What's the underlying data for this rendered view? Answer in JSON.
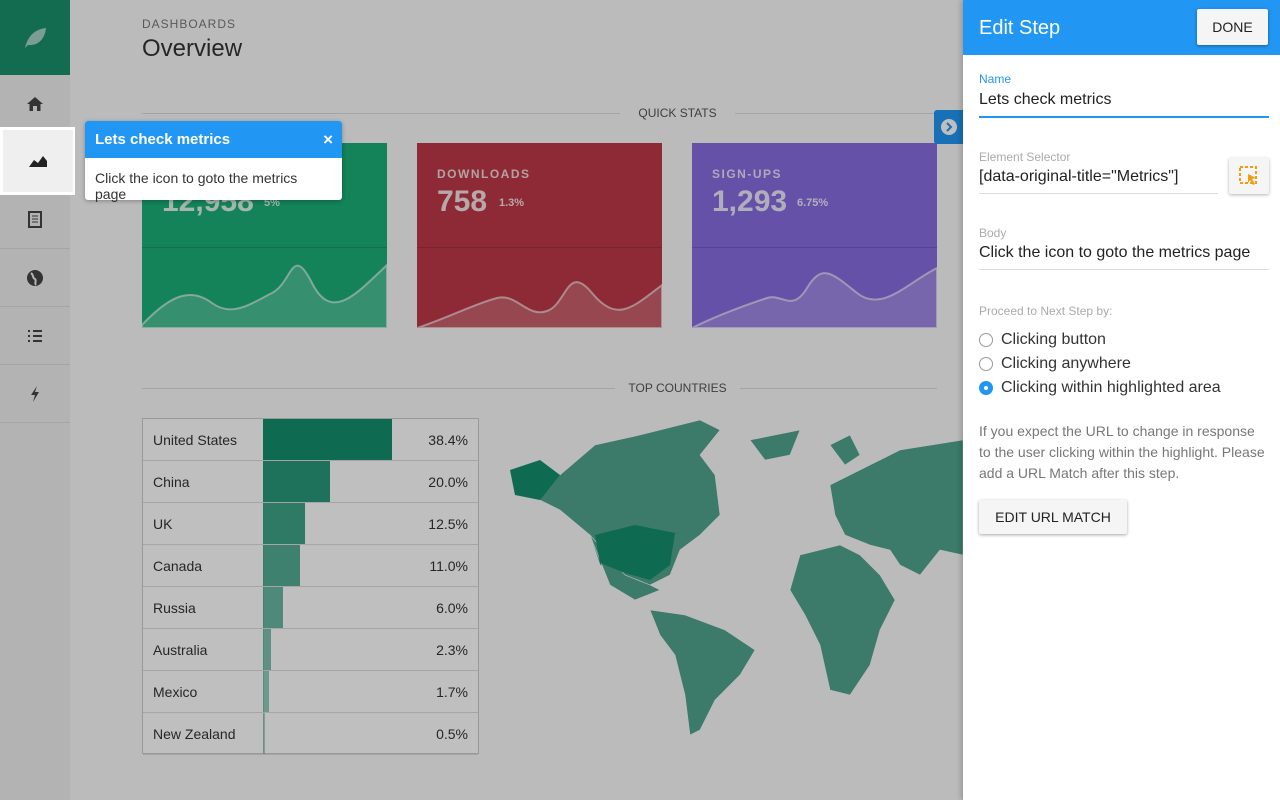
{
  "header": {
    "breadcrumb": "DASHBOARDS",
    "title": "Overview"
  },
  "quick_stats": {
    "title": "QUICK STATS",
    "cards": [
      {
        "value": "12,958",
        "change": "5%"
      },
      {
        "label": "DOWNLOADS",
        "value": "758",
        "change": "1.3%"
      },
      {
        "label": "SIGN-UPS",
        "value": "1,293",
        "change": "6.75%"
      }
    ]
  },
  "top_countries": {
    "title": "TOP COUNTRIES",
    "countries": [
      "United States",
      "China",
      "UK",
      "Canada",
      "Russia",
      "Australia",
      "Mexico",
      "New Zealand"
    ],
    "values": [
      38.4,
      20.0,
      12.5,
      11.0,
      6.0,
      2.3,
      1.7,
      0.5
    ],
    "value_labels": [
      "38.4%",
      "20.0%",
      "12.5%",
      "11.0%",
      "6.0%",
      "2.3%",
      "1.7%",
      "0.5%"
    ]
  },
  "tooltip": {
    "title": "Lets check metrics",
    "close": "×",
    "body": "Click the icon to goto the metrics page"
  },
  "edit_panel": {
    "title": "Edit Step",
    "done_button": "DONE",
    "fields": [
      {
        "label": "Name",
        "value": "Lets check metrics"
      },
      {
        "label": "Element Selector",
        "value": "[data-original-title=\"Metrics\"]"
      },
      {
        "label": "Body",
        "value": "Click the icon to goto the metrics page"
      }
    ],
    "proceed_label": "Proceed to Next Step by:",
    "options": [
      {
        "label": "Clicking button",
        "selected": false
      },
      {
        "label": "Clicking anywhere",
        "selected": false
      },
      {
        "label": "Clicking within highlighted area",
        "selected": true
      }
    ],
    "note": "If you expect the URL to change in response to the user clicking within the highlight. Please add a URL Match after this step.",
    "url_button": "EDIT URL MATCH"
  }
}
